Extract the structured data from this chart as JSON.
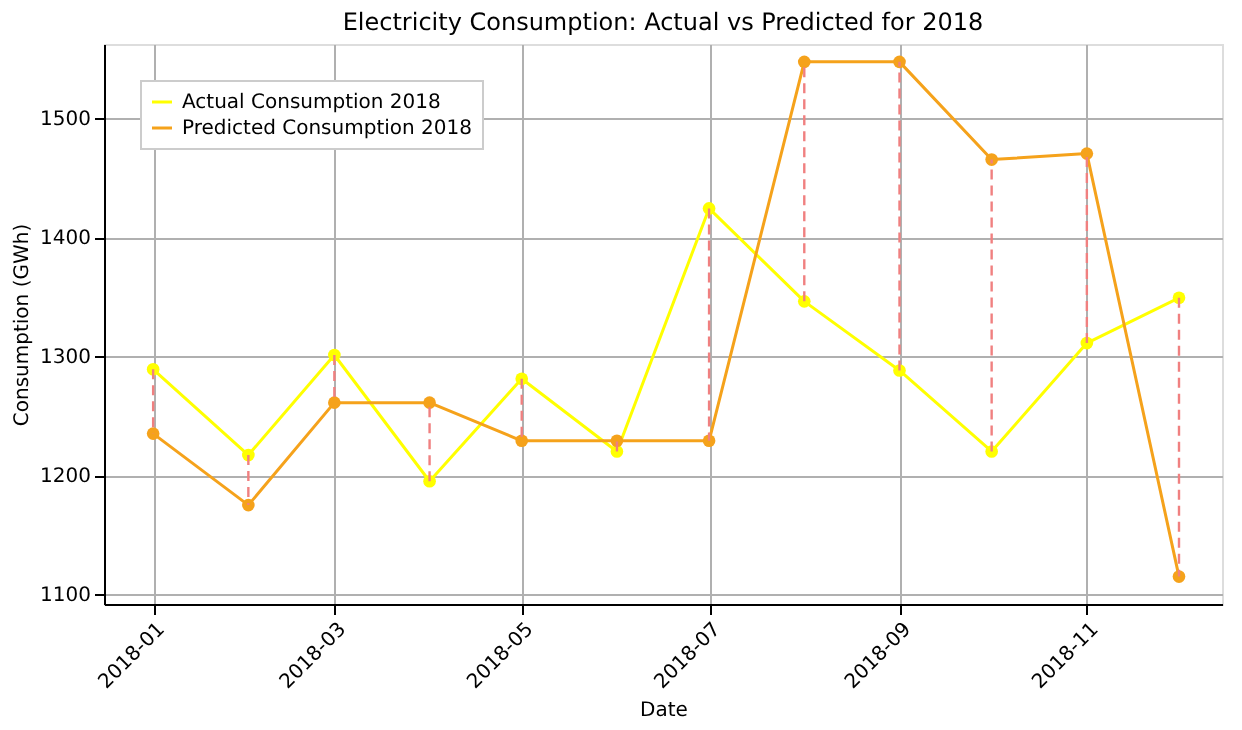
{
  "chart_data": {
    "type": "line",
    "title": "Electricity Consumption: Actual vs Predicted for 2018",
    "xlabel": "Date",
    "ylabel": "Consumption (GWh)",
    "x": [
      "2018-01-01",
      "2018-02-01",
      "2018-03-01",
      "2018-04-01",
      "2018-05-01",
      "2018-06-01",
      "2018-07-01",
      "2018-08-01",
      "2018-09-01",
      "2018-10-01",
      "2018-11-01",
      "2018-12-01"
    ],
    "series": [
      {
        "name": "Actual Consumption 2018",
        "color": "#ffff00",
        "values": [
          1289,
          1217,
          1301,
          1195,
          1281,
          1220,
          1424,
          1346,
          1288,
          1220,
          1311,
          1349
        ]
      },
      {
        "name": "Predicted Consumption 2018",
        "color": "#f5a21b",
        "values": [
          1235,
          1175,
          1261,
          1261,
          1229,
          1229,
          1229,
          1547,
          1547,
          1465,
          1470,
          1115
        ]
      },
      {
        "type": "line",
        "color": "#f08080",
        "line_style": "dashed",
        "marker": "none",
        "x": [
          "2018-01-01",
          "2018-01-01"
        ],
        "values": [
          1289,
          1235
        ]
      },
      {
        "type": "line",
        "color": "#f08080",
        "line_style": "dashed",
        "marker": "none",
        "x": [
          "2018-02-01",
          "2018-02-01"
        ],
        "values": [
          1217,
          1175
        ]
      },
      {
        "type": "line",
        "color": "#f08080",
        "line_style": "dashed",
        "marker": "none",
        "x": [
          "2018-03-01",
          "2018-03-01"
        ],
        "values": [
          1301,
          1261
        ]
      },
      {
        "type": "line",
        "color": "#f08080",
        "line_style": "dashed",
        "marker": "none",
        "x": [
          "2018-04-01",
          "2018-04-01"
        ],
        "values": [
          1195,
          1261
        ]
      },
      {
        "type": "line",
        "color": "#f08080",
        "line_style": "dashed",
        "marker": "none",
        "x": [
          "2018-05-01",
          "2018-05-01"
        ],
        "values": [
          1281,
          1229
        ]
      },
      {
        "type": "line",
        "color": "#f08080",
        "line_style": "dashed",
        "marker": "none",
        "x": [
          "2018-06-01",
          "2018-06-01"
        ],
        "values": [
          1220,
          1229
        ]
      },
      {
        "type": "line",
        "color": "#f08080",
        "line_style": "dashed",
        "marker": "none",
        "x": [
          "2018-07-01",
          "2018-07-01"
        ],
        "values": [
          1424,
          1229
        ]
      },
      {
        "type": "line",
        "color": "#f08080",
        "line_style": "dashed",
        "marker": "none",
        "x": [
          "2018-08-01",
          "2018-08-01"
        ],
        "values": [
          1346,
          1547
        ]
      },
      {
        "type": "line",
        "color": "#f08080",
        "line_style": "dashed",
        "marker": "none",
        "x": [
          "2018-09-01",
          "2018-09-01"
        ],
        "values": [
          1288,
          1547
        ]
      },
      {
        "type": "line",
        "color": "#f08080",
        "line_style": "dashed",
        "marker": "none",
        "x": [
          "2018-10-01",
          "2018-10-01"
        ],
        "values": [
          1220,
          1465
        ]
      },
      {
        "type": "line",
        "color": "#f08080",
        "line_style": "dashed",
        "marker": "none",
        "x": [
          "2018-11-01",
          "2018-11-01"
        ],
        "values": [
          1311,
          1470
        ]
      },
      {
        "type": "line",
        "color": "#f08080",
        "line_style": "dashed",
        "marker": "none",
        "x": [
          "2018-12-01",
          "2018-12-01"
        ],
        "values": [
          1349,
          1115
        ]
      }
    ],
    "xlim": [
      "2017-12-16",
      "2018-12-15"
    ],
    "xticks": [
      "2018-01",
      "2018-03",
      "2018-05",
      "2018-07",
      "2018-09",
      "2018-11"
    ],
    "ylim": [
      1092,
      1562
    ],
    "yticks": [
      1100,
      1200,
      1300,
      1400,
      1500
    ],
    "grid": true,
    "legend": "top left",
    "marker": "circle",
    "line_style": "solid"
  }
}
